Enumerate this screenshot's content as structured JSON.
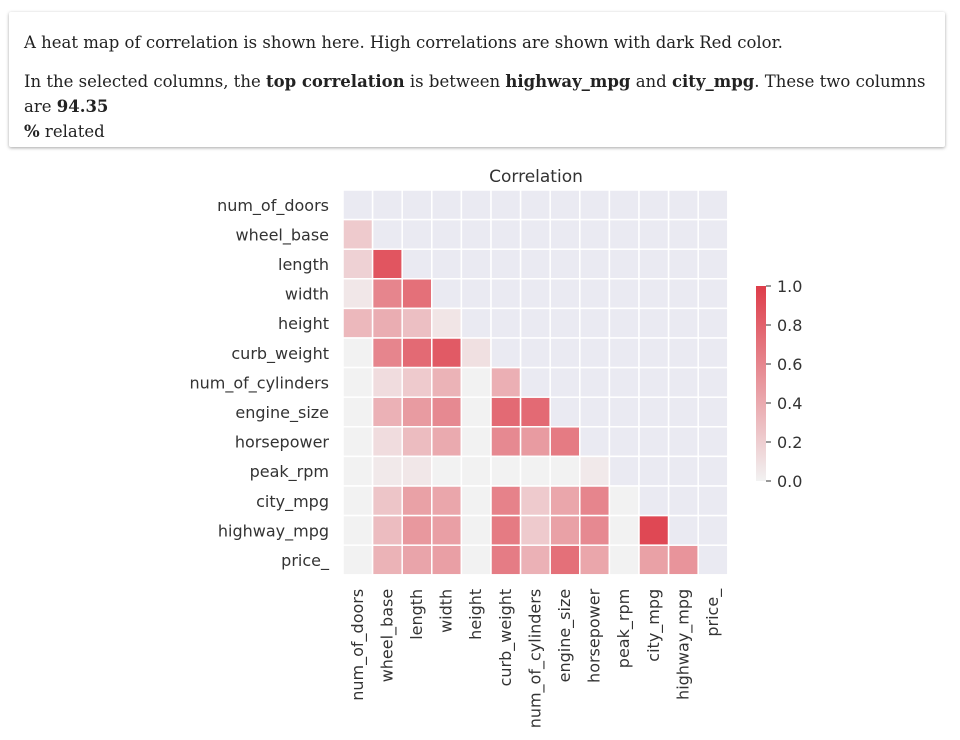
{
  "summary": {
    "line1": "A heat map of correlation is shown here. High correlations are shown with dark Red color.",
    "line2_prefix": "In the selected columns, the ",
    "top_label": "top correlation",
    "between": " is between ",
    "col_a": "highway_mpg",
    "and": " and ",
    "col_b": "city_mpg",
    "related_prefix": ". These two columns are ",
    "percent_value": "94.35",
    "percent_sign": "%",
    "related_suffix": " related"
  },
  "chart_data": {
    "type": "heatmap",
    "title": "Correlation",
    "labels": [
      "num_of_doors",
      "wheel_base",
      "length",
      "width",
      "height",
      "curb_weight",
      "num_of_cylinders",
      "engine_size",
      "horsepower",
      "peak_rpm",
      "city_mpg",
      "highway_mpg",
      "price_"
    ],
    "values": [
      [
        null,
        null,
        null,
        null,
        null,
        null,
        null,
        null,
        null,
        null,
        null,
        null,
        null
      ],
      [
        0.22,
        null,
        null,
        null,
        null,
        null,
        null,
        null,
        null,
        null,
        null,
        null,
        null
      ],
      [
        0.18,
        0.87,
        null,
        null,
        null,
        null,
        null,
        null,
        null,
        null,
        null,
        null,
        null
      ],
      [
        0.06,
        0.6,
        0.72,
        null,
        null,
        null,
        null,
        null,
        null,
        null,
        null,
        null,
        null
      ],
      [
        0.32,
        0.38,
        0.28,
        0.07,
        null,
        null,
        null,
        null,
        null,
        null,
        null,
        null,
        null
      ],
      [
        0,
        0.6,
        0.75,
        0.84,
        0.1,
        null,
        null,
        null,
        null,
        null,
        null,
        null,
        null
      ],
      [
        0,
        0.12,
        0.22,
        0.35,
        0,
        0.37,
        null,
        null,
        null,
        null,
        null,
        null,
        null
      ],
      [
        0,
        0.36,
        0.48,
        0.58,
        0,
        0.75,
        0.75,
        null,
        null,
        null,
        null,
        null,
        null
      ],
      [
        0,
        0.12,
        0.3,
        0.4,
        0,
        0.58,
        0.48,
        0.66,
        null,
        null,
        null,
        null,
        null
      ],
      [
        0,
        0.05,
        0.06,
        0,
        0,
        0,
        0,
        0,
        0.05,
        null,
        null,
        null,
        null
      ],
      [
        0,
        0.25,
        0.45,
        0.42,
        0,
        0.62,
        0.22,
        0.42,
        0.6,
        0,
        null,
        null,
        null
      ],
      [
        0,
        0.3,
        0.5,
        0.46,
        0,
        0.66,
        0.22,
        0.45,
        0.58,
        0,
        0.94,
        null,
        null
      ],
      [
        0,
        0.35,
        0.43,
        0.46,
        0,
        0.65,
        0.36,
        0.72,
        0.42,
        0,
        0.45,
        0.52,
        null
      ]
    ],
    "colorbar": {
      "min": 0.0,
      "max": 1.0,
      "ticks": [
        "0.0",
        "0.2",
        "0.4",
        "0.6",
        "0.8",
        "1.0"
      ]
    },
    "colors": {
      "low": "#f2f2f2",
      "high": "#de3d4a",
      "masked": "#eaeaf2",
      "grid": "#ffffff"
    }
  }
}
